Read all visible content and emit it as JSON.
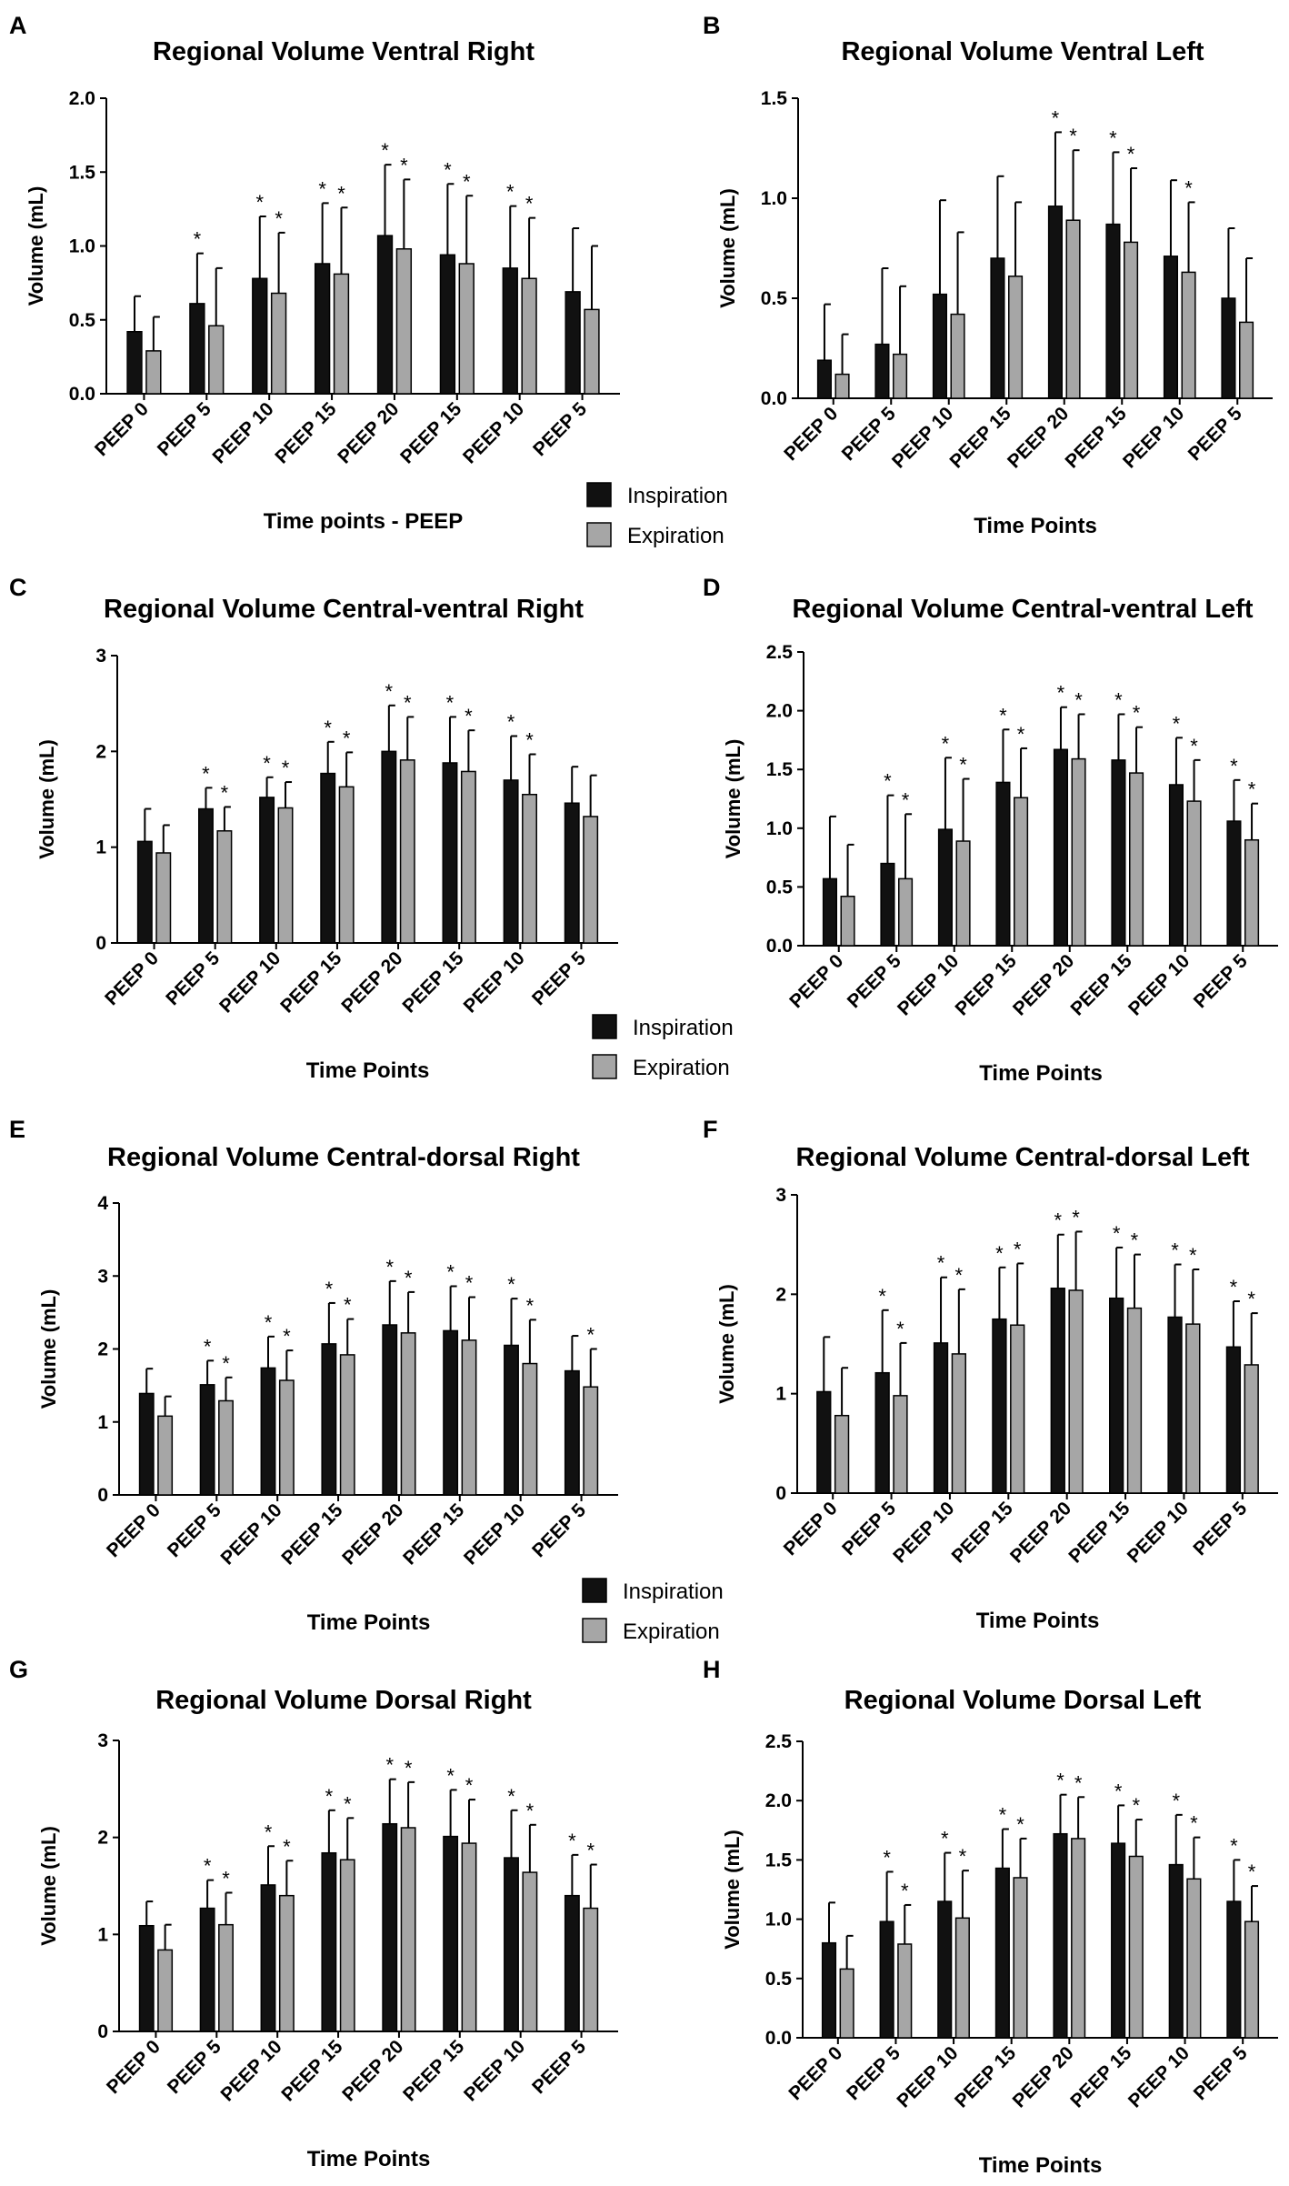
{
  "colors": {
    "inspiration": "#111111",
    "expiration": "#a6a6a6",
    "axis": "#000000"
  },
  "series_names": [
    "Inspiration",
    "Expiration"
  ],
  "legends": [
    {
      "items": [
        "Inspiration",
        "Expiration"
      ]
    },
    {
      "items": [
        "Inspiration",
        "Expiration"
      ]
    },
    {
      "items": [
        "Inspiration",
        "Expiration"
      ]
    }
  ],
  "chart_data": [
    {
      "label": "A",
      "type": "bar",
      "title": "Regional Volume Ventral Right",
      "xlabel": "Time points -  PEEP",
      "ylabel": "Volume  (mL)",
      "ylim": [
        0,
        2.0
      ],
      "yticks": [
        "0.0",
        "0.5",
        "1.0",
        "1.5",
        "2.0"
      ],
      "categories": [
        "PEEP 0",
        "PEEP 5",
        "PEEP 10",
        "PEEP 15",
        "PEEP 20",
        "PEEP 15",
        "PEEP 10",
        "PEEP 5"
      ],
      "series": [
        {
          "name": "Inspiration",
          "values": [
            0.42,
            0.61,
            0.78,
            0.88,
            1.07,
            0.94,
            0.85,
            0.69
          ],
          "err": [
            0.66,
            0.95,
            1.2,
            1.29,
            1.55,
            1.42,
            1.27,
            1.12
          ],
          "sig": [
            false,
            true,
            true,
            true,
            true,
            true,
            true,
            false
          ]
        },
        {
          "name": "Expiration",
          "values": [
            0.29,
            0.46,
            0.68,
            0.81,
            0.98,
            0.88,
            0.78,
            0.57
          ],
          "err": [
            0.52,
            0.85,
            1.09,
            1.26,
            1.45,
            1.34,
            1.19,
            1.0
          ],
          "sig": [
            false,
            false,
            true,
            true,
            true,
            true,
            true,
            false
          ]
        }
      ]
    },
    {
      "label": "B",
      "type": "bar",
      "title": "Regional Volume Ventral Left",
      "xlabel": "Time Points",
      "ylabel": "Volume  (mL)",
      "ylim": [
        0,
        1.5
      ],
      "yticks": [
        "0.0",
        "0.5",
        "1.0",
        "1.5"
      ],
      "categories": [
        "PEEP 0",
        "PEEP 5",
        "PEEP 10",
        "PEEP 15",
        "PEEP 20",
        "PEEP 15",
        "PEEP 10",
        "PEEP 5"
      ],
      "series": [
        {
          "name": "Inspiration",
          "values": [
            0.19,
            0.27,
            0.52,
            0.7,
            0.96,
            0.87,
            0.71,
            0.5
          ],
          "err": [
            0.47,
            0.65,
            0.99,
            1.11,
            1.33,
            1.23,
            1.09,
            0.85
          ],
          "sig": [
            false,
            false,
            false,
            false,
            true,
            true,
            false,
            false
          ]
        },
        {
          "name": "Expiration",
          "values": [
            0.12,
            0.22,
            0.42,
            0.61,
            0.89,
            0.78,
            0.63,
            0.38
          ],
          "err": [
            0.32,
            0.56,
            0.83,
            0.98,
            1.24,
            1.15,
            0.98,
            0.7
          ],
          "sig": [
            false,
            false,
            false,
            false,
            true,
            true,
            true,
            false
          ]
        }
      ]
    },
    {
      "label": "C",
      "type": "bar",
      "title": "Regional Volume Central-ventral Right",
      "xlabel": "Time Points",
      "ylabel": "Volume  (mL)",
      "ylim": [
        0,
        3
      ],
      "yticks": [
        "0",
        "1",
        "2",
        "3"
      ],
      "categories": [
        "PEEP 0",
        "PEEP 5",
        "PEEP 10",
        "PEEP 15",
        "PEEP 20",
        "PEEP 15",
        "PEEP 10",
        "PEEP 5"
      ],
      "series": [
        {
          "name": "Inspiration",
          "values": [
            1.06,
            1.4,
            1.52,
            1.77,
            2.0,
            1.88,
            1.7,
            1.46
          ],
          "err": [
            1.4,
            1.62,
            1.73,
            2.1,
            2.48,
            2.36,
            2.16,
            1.84
          ],
          "sig": [
            false,
            true,
            true,
            true,
            true,
            true,
            true,
            false
          ]
        },
        {
          "name": "Expiration",
          "values": [
            0.94,
            1.17,
            1.41,
            1.63,
            1.91,
            1.79,
            1.55,
            1.32
          ],
          "err": [
            1.23,
            1.42,
            1.68,
            1.99,
            2.36,
            2.22,
            1.97,
            1.75
          ],
          "sig": [
            false,
            true,
            true,
            true,
            true,
            true,
            true,
            false
          ]
        }
      ]
    },
    {
      "label": "D",
      "type": "bar",
      "title": "Regional Volume Central-ventral Left",
      "xlabel": "Time Points",
      "ylabel": "Volume  (mL)",
      "ylim": [
        0,
        2.5
      ],
      "yticks": [
        "0.0",
        "0.5",
        "1.0",
        "1.5",
        "2.0",
        "2.5"
      ],
      "categories": [
        "PEEP 0",
        "PEEP 5",
        "PEEP 10",
        "PEEP 15",
        "PEEP 20",
        "PEEP 15",
        "PEEP 10",
        "PEEP 5"
      ],
      "series": [
        {
          "name": "Inspiration",
          "values": [
            0.57,
            0.7,
            0.99,
            1.39,
            1.67,
            1.58,
            1.37,
            1.06
          ],
          "err": [
            1.1,
            1.28,
            1.6,
            1.84,
            2.03,
            1.97,
            1.77,
            1.41
          ],
          "sig": [
            false,
            true,
            true,
            true,
            true,
            true,
            true,
            true
          ]
        },
        {
          "name": "Expiration",
          "values": [
            0.42,
            0.57,
            0.89,
            1.26,
            1.59,
            1.47,
            1.23,
            0.9
          ],
          "err": [
            0.86,
            1.12,
            1.42,
            1.68,
            1.97,
            1.86,
            1.58,
            1.21
          ],
          "sig": [
            false,
            true,
            true,
            true,
            true,
            true,
            true,
            true
          ]
        }
      ]
    },
    {
      "label": "E",
      "type": "bar",
      "title": "Regional Volume Central-dorsal Right",
      "xlabel": "Time Points",
      "ylabel": "Volume  (mL)",
      "ylim": [
        0,
        4
      ],
      "yticks": [
        "0",
        "1",
        "2",
        "3",
        "4"
      ],
      "categories": [
        "PEEP 0",
        "PEEP 5",
        "PEEP 10",
        "PEEP 15",
        "PEEP 20",
        "PEEP 15",
        "PEEP 10",
        "PEEP 5"
      ],
      "series": [
        {
          "name": "Inspiration",
          "values": [
            1.39,
            1.51,
            1.74,
            2.07,
            2.33,
            2.25,
            2.05,
            1.7
          ],
          "err": [
            1.73,
            1.84,
            2.17,
            2.63,
            2.93,
            2.86,
            2.69,
            2.18
          ],
          "sig": [
            false,
            true,
            true,
            true,
            true,
            true,
            true,
            false
          ]
        },
        {
          "name": "Expiration",
          "values": [
            1.08,
            1.29,
            1.57,
            1.92,
            2.22,
            2.12,
            1.8,
            1.48
          ],
          "err": [
            1.35,
            1.61,
            1.98,
            2.41,
            2.78,
            2.71,
            2.4,
            2.0
          ],
          "sig": [
            false,
            true,
            true,
            true,
            true,
            true,
            true,
            true
          ]
        }
      ]
    },
    {
      "label": "F",
      "type": "bar",
      "title": "Regional Volume Central-dorsal Left",
      "xlabel": "Time Points",
      "ylabel": "Volume  (mL)",
      "ylim": [
        0,
        3
      ],
      "yticks": [
        "0",
        "1",
        "2",
        "3"
      ],
      "categories": [
        "PEEP 0",
        "PEEP 5",
        "PEEP 10",
        "PEEP 15",
        "PEEP 20",
        "PEEP 15",
        "PEEP 10",
        "PEEP 5"
      ],
      "series": [
        {
          "name": "Inspiration",
          "values": [
            1.02,
            1.21,
            1.51,
            1.75,
            2.06,
            1.96,
            1.77,
            1.47
          ],
          "err": [
            1.57,
            1.84,
            2.17,
            2.27,
            2.6,
            2.47,
            2.3,
            1.93
          ],
          "sig": [
            false,
            true,
            true,
            true,
            true,
            true,
            true,
            true
          ]
        },
        {
          "name": "Expiration",
          "values": [
            0.78,
            0.98,
            1.4,
            1.69,
            2.04,
            1.86,
            1.7,
            1.29
          ],
          "err": [
            1.26,
            1.51,
            2.05,
            2.31,
            2.63,
            2.4,
            2.25,
            1.81
          ],
          "sig": [
            false,
            true,
            true,
            true,
            true,
            true,
            true,
            true
          ]
        }
      ]
    },
    {
      "label": "G",
      "type": "bar",
      "title": "Regional Volume Dorsal Right",
      "xlabel": "Time Points",
      "ylabel": "Volume  (mL)",
      "ylim": [
        0,
        3
      ],
      "yticks": [
        "0",
        "1",
        "2",
        "3"
      ],
      "categories": [
        "PEEP 0",
        "PEEP 5",
        "PEEP 10",
        "PEEP 15",
        "PEEP 20",
        "PEEP 15",
        "PEEP 10",
        "PEEP 5"
      ],
      "series": [
        {
          "name": "Inspiration",
          "values": [
            1.09,
            1.27,
            1.51,
            1.84,
            2.14,
            2.01,
            1.79,
            1.4
          ],
          "err": [
            1.34,
            1.56,
            1.91,
            2.28,
            2.6,
            2.49,
            2.28,
            1.82
          ],
          "sig": [
            false,
            true,
            true,
            true,
            true,
            true,
            true,
            true
          ]
        },
        {
          "name": "Expiration",
          "values": [
            0.84,
            1.1,
            1.4,
            1.77,
            2.1,
            1.94,
            1.64,
            1.27
          ],
          "err": [
            1.1,
            1.43,
            1.76,
            2.2,
            2.57,
            2.39,
            2.13,
            1.72
          ],
          "sig": [
            false,
            true,
            true,
            true,
            true,
            true,
            true,
            true
          ]
        }
      ]
    },
    {
      "label": "H",
      "type": "bar",
      "title": "Regional Volume Dorsal Left",
      "xlabel": "Time Points",
      "ylabel": "Volume  (mL)",
      "ylim": [
        0,
        2.5
      ],
      "yticks": [
        "0.0",
        "0.5",
        "1.0",
        "1.5",
        "2.0",
        "2.5"
      ],
      "categories": [
        "PEEP 0",
        "PEEP 5",
        "PEEP 10",
        "PEEP 15",
        "PEEP 20",
        "PEEP 15",
        "PEEP 10",
        "PEEP 5"
      ],
      "series": [
        {
          "name": "Inspiration",
          "values": [
            0.8,
            0.98,
            1.15,
            1.43,
            1.72,
            1.64,
            1.46,
            1.15
          ],
          "err": [
            1.14,
            1.4,
            1.56,
            1.76,
            2.05,
            1.96,
            1.88,
            1.5
          ],
          "sig": [
            false,
            true,
            true,
            true,
            true,
            true,
            true,
            true
          ]
        },
        {
          "name": "Expiration",
          "values": [
            0.58,
            0.79,
            1.01,
            1.35,
            1.68,
            1.53,
            1.34,
            0.98
          ],
          "err": [
            0.86,
            1.12,
            1.41,
            1.68,
            2.03,
            1.84,
            1.69,
            1.28
          ],
          "sig": [
            false,
            true,
            true,
            true,
            true,
            true,
            true,
            true
          ]
        }
      ]
    }
  ]
}
